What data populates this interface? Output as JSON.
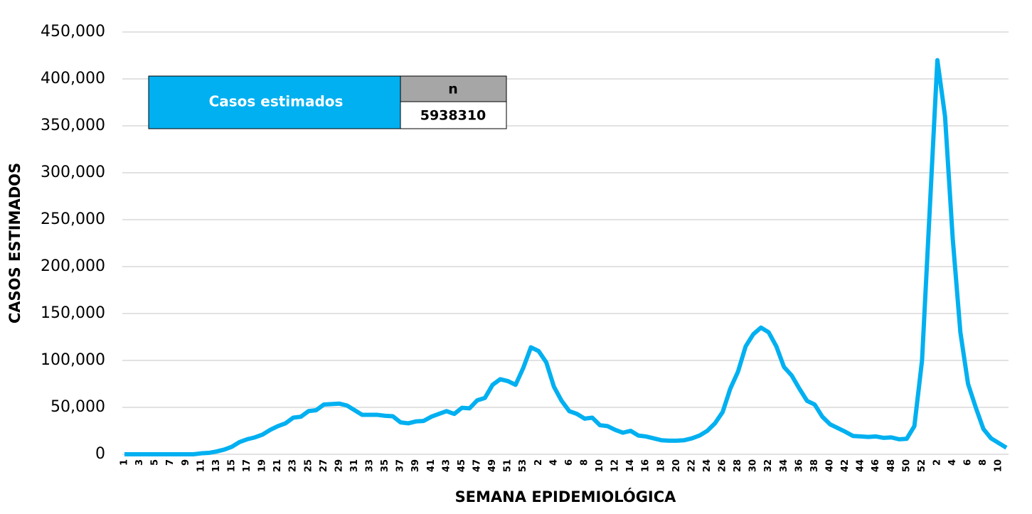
{
  "chart_data": {
    "type": "line",
    "x_label": "SEMANA EPIDEMIOLÓGICA",
    "y_label": "CASOS ESTIMADOS",
    "summary": {
      "label": "Casos estimados",
      "header": "n",
      "value": 5938310
    },
    "categories": [
      "1",
      null,
      "3",
      null,
      "5",
      null,
      "7",
      null,
      "9",
      null,
      "11",
      null,
      "13",
      null,
      "15",
      null,
      "17",
      null,
      "19",
      null,
      "21",
      null,
      "23",
      null,
      "25",
      null,
      "27",
      null,
      "29",
      null,
      "31",
      null,
      "33",
      null,
      "35",
      null,
      "37",
      null,
      "39",
      null,
      "41",
      null,
      "43",
      null,
      "45",
      null,
      "47",
      null,
      "49",
      null,
      "51",
      null,
      "53",
      null,
      "2",
      null,
      "4",
      null,
      "6",
      null,
      "8",
      null,
      "10",
      null,
      "12",
      null,
      "14",
      null,
      "16",
      null,
      "18",
      null,
      "20",
      null,
      "22",
      null,
      "24",
      null,
      "26",
      null,
      "28",
      null,
      "30",
      null,
      "32",
      null,
      "34",
      null,
      "36",
      null,
      "38",
      null,
      "40",
      null,
      "42",
      null,
      "44",
      null,
      "46",
      null,
      "48",
      null,
      "50",
      null,
      "52",
      null,
      "2",
      null,
      "4",
      null,
      "6",
      null,
      "8",
      null,
      "10",
      null
    ],
    "series": [
      {
        "name": "Casos estimados",
        "color": "#00b0f0",
        "values": [
          0,
          0,
          0,
          0,
          0,
          0,
          0,
          0,
          0,
          0,
          1000,
          1500,
          3000,
          5000,
          8000,
          13000,
          16000,
          18000,
          21000,
          26000,
          30000,
          33000,
          39000,
          40000,
          46000,
          47000,
          53000,
          53500,
          54000,
          52000,
          47000,
          42000,
          42000,
          42000,
          41000,
          40500,
          34000,
          33000,
          35000,
          35500,
          40000,
          43000,
          46000,
          43000,
          49500,
          49000,
          57500,
          60000,
          74000,
          80000,
          78000,
          74000,
          92000,
          114000,
          110000,
          98000,
          72000,
          57000,
          46000,
          43000,
          38000,
          39000,
          31000,
          30000,
          26000,
          23000,
          25000,
          20000,
          19000,
          17000,
          15000,
          14500,
          14500,
          15000,
          17000,
          20000,
          25000,
          33000,
          45000,
          70000,
          88000,
          115000,
          128000,
          135000,
          130000,
          115000,
          93000,
          84000,
          70000,
          57000,
          53000,
          40000,
          32000,
          28000,
          24000,
          19500,
          19000,
          18500,
          19000,
          17500,
          18000,
          16000,
          16500,
          30000,
          100000,
          260000,
          420000,
          360000,
          230000,
          130000,
          75000,
          50000,
          27000,
          17000,
          12000,
          7000
        ]
      }
    ],
    "ylim": [
      0,
      450000
    ],
    "yticks": [
      0,
      {
        "value": 50000,
        "label": "50,000"
      },
      {
        "value": 100000,
        "label": "100,000"
      },
      {
        "value": 150000,
        "label": "150,000"
      },
      {
        "value": 200000,
        "label": "200,000"
      },
      {
        "value": 250000,
        "label": "250,000"
      },
      {
        "value": 300000,
        "label": "300,000"
      },
      {
        "value": 350000,
        "label": "350,000"
      },
      {
        "value": 400000,
        "label": "400,000"
      },
      {
        "value": 450000,
        "label": "450,000"
      }
    ],
    "grid": true
  }
}
